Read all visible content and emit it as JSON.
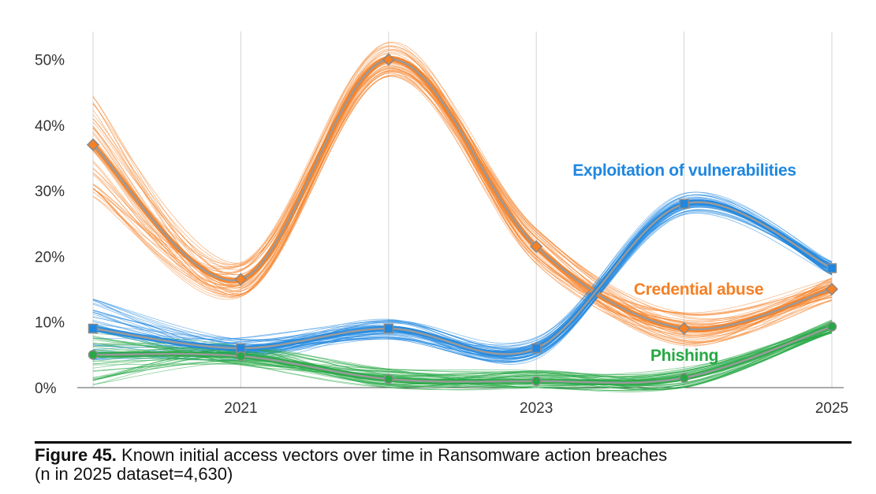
{
  "chart_data": {
    "type": "line",
    "x": [
      2020,
      2021,
      2022,
      2023,
      2024,
      2025
    ],
    "x_tick_labels": [
      "2021",
      "2023",
      "2025"
    ],
    "x_tick_values": [
      2021,
      2023,
      2025
    ],
    "y_tick_labels": [
      "0%",
      "10%",
      "20%",
      "30%",
      "40%",
      "50%"
    ],
    "y_tick_values": [
      0,
      10,
      20,
      30,
      40,
      50
    ],
    "ylim": [
      0,
      55
    ],
    "xlim": [
      2020,
      2025
    ],
    "grid": "vertical",
    "series": [
      {
        "name": "Credential abuse",
        "values": [
          37,
          16.5,
          50,
          21.5,
          9,
          15
        ],
        "color": "#f58025",
        "marker": "diamond",
        "spread": 5
      },
      {
        "name": "Exploitation of vulnerabilities",
        "values": [
          9,
          6,
          9,
          6,
          28,
          18.2
        ],
        "color": "#1f87e0",
        "marker": "square",
        "spread": 3
      },
      {
        "name": "Phishing",
        "values": [
          5,
          4.8,
          1.3,
          1,
          1.5,
          9.3
        ],
        "color": "#27a845",
        "marker": "circle",
        "spread": 3
      }
    ]
  },
  "caption": {
    "label": "Figure 45.",
    "text": " Known initial access vectors over time in Ransomware action breaches",
    "line2": "(n in 2025 dataset=4,630)"
  }
}
